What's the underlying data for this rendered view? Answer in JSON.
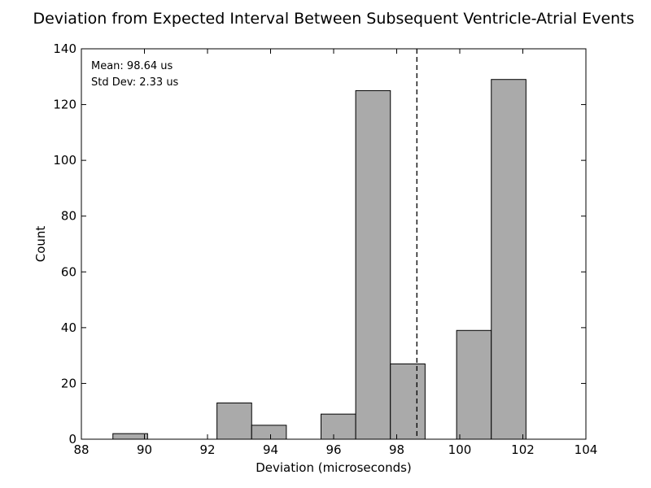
{
  "chart_data": {
    "type": "bar",
    "title": "Deviation from Expected Interval Between Subsequent Ventricle-Atrial Events",
    "xlabel": "Deviation (microseconds)",
    "ylabel": "Count",
    "xlim": [
      88,
      104
    ],
    "ylim": [
      0,
      140
    ],
    "xticks": [
      88,
      90,
      92,
      94,
      96,
      98,
      100,
      102,
      104
    ],
    "yticks": [
      0,
      20,
      40,
      60,
      80,
      100,
      120,
      140
    ],
    "bins": [
      {
        "start": 89.0,
        "end": 90.1,
        "count": 2
      },
      {
        "start": 92.3,
        "end": 93.4,
        "count": 13
      },
      {
        "start": 93.4,
        "end": 94.5,
        "count": 5
      },
      {
        "start": 95.6,
        "end": 96.7,
        "count": 9
      },
      {
        "start": 96.7,
        "end": 97.8,
        "count": 125
      },
      {
        "start": 97.8,
        "end": 98.9,
        "count": 27
      },
      {
        "start": 99.9,
        "end": 101.0,
        "count": 39
      },
      {
        "start": 101.0,
        "end": 102.1,
        "count": 129
      }
    ],
    "mean_line": 98.64,
    "annotations": {
      "mean": "Mean: 98.64 us",
      "std": "Std Dev: 2.33 us"
    },
    "grid": false,
    "bar_color": "#aaaaaa",
    "edge_color": "#000000"
  }
}
